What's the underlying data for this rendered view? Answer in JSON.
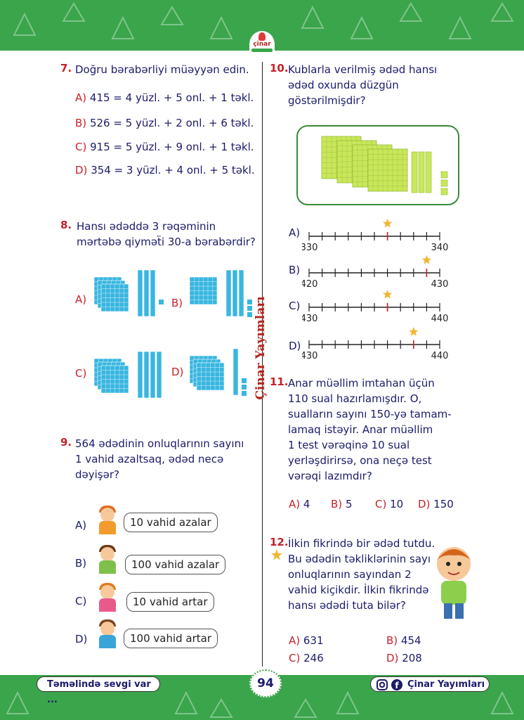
{
  "header": {
    "logo_text": "çinar"
  },
  "side_label": "Çinar Yayımları",
  "q7": {
    "num": "7.",
    "text": "Doğru bərabərliyi müəyyən edin.",
    "options": [
      {
        "letter": "A)",
        "text": "415 = 4 yüzl. + 5 onl. + 1 təkl."
      },
      {
        "letter": "B)",
        "text": "526 = 5 yüzl. + 2 onl. + 6 təkl."
      },
      {
        "letter": "C)",
        "text": "915 = 5 yüzl. + 9 onl. + 1 təkl."
      },
      {
        "letter": "D)",
        "text": "354 = 3 yüzl. + 4 onl. + 5 təkl."
      }
    ]
  },
  "q8": {
    "num": "8.",
    "line1": "Hansı ədəddə 3 rəqəminin",
    "line2": "mərtəbə qiyməẗi 30-a bərabərdir?",
    "options": [
      {
        "letter": "A)",
        "hundreds": 3,
        "tens": 3,
        "ones": 1
      },
      {
        "letter": "B)",
        "hundreds": 1,
        "tens": 3,
        "ones": 3
      },
      {
        "letter": "C)",
        "hundreds": 3,
        "tens": 4,
        "ones": 0
      },
      {
        "letter": "D)",
        "hundreds": 3,
        "tens": 1,
        "ones": 3
      }
    ]
  },
  "q9": {
    "num": "9.",
    "line1": "564 ədədinin onluqlarının sayını",
    "line2": "1 vahid azaltsaq, ədəd necə",
    "line3": "dəyişər?",
    "options": [
      {
        "letter": "A)",
        "text": "10 vahid azalar"
      },
      {
        "letter": "B)",
        "text": "100 vahid azalar"
      },
      {
        "letter": "C)",
        "text": "10 vahid artar"
      },
      {
        "letter": "D)",
        "text": "100 vahid artar"
      }
    ]
  },
  "q10": {
    "num": "10.",
    "line1": "Kublarla verilmiş ədəd hansı",
    "line2": "ədəd oxunda düzgün",
    "line3": "göstərilmişdir?",
    "blocks": {
      "hundreds": 4,
      "tens": 3,
      "ones": 3
    },
    "options": [
      {
        "letter": "A)",
        "start": "330",
        "end": "340",
        "star_value": 336
      },
      {
        "letter": "B)",
        "start": "420",
        "end": "430",
        "star_value": 429
      },
      {
        "letter": "C)",
        "start": "430",
        "end": "440",
        "star_value": 436
      },
      {
        "letter": "D)",
        "start": "430",
        "end": "440",
        "star_value": 438
      }
    ]
  },
  "q11": {
    "num": "11.",
    "lines": [
      "Anar müəllim imtahan üçün",
      "110 sual hazırlamışdır. O,",
      "sualların sayını 150-yə tamam-",
      "lamaq istəyir. Anar müəllim",
      "1 test vərəqinə 10 sual",
      "yerləşdirirsə, ona neçə test",
      "vərəqi lazımdır?"
    ],
    "options": [
      {
        "letter": "A)",
        "text": "4"
      },
      {
        "letter": "B)",
        "text": "5"
      },
      {
        "letter": "C)",
        "text": "10"
      },
      {
        "letter": "D)",
        "text": "150"
      }
    ]
  },
  "q12": {
    "num": "12.",
    "lines": [
      "İlkin fikrində bir ədəd tutdu.",
      "Bu ədədin təkliklərinin sayı",
      "onluqlarının sayından 2",
      "vahid kiçikdir. İlkin fikrində",
      "hansı ədədi tuta bilər?"
    ],
    "options": [
      {
        "letter": "A)",
        "text": "631"
      },
      {
        "letter": "B)",
        "text": "454"
      },
      {
        "letter": "C)",
        "text": "246"
      },
      {
        "letter": "D)",
        "text": "208"
      }
    ]
  },
  "footer": {
    "left": "Təməlində sevgi var ...",
    "page": "94",
    "right": "Çinar Yayımları"
  },
  "colors": {
    "green": "#3aa54b",
    "red": "#c7202a",
    "navy": "#1b1b6b",
    "cube_blue": "#38b6e0",
    "cube_green": "#c8e85a",
    "star": "#f2b632"
  }
}
